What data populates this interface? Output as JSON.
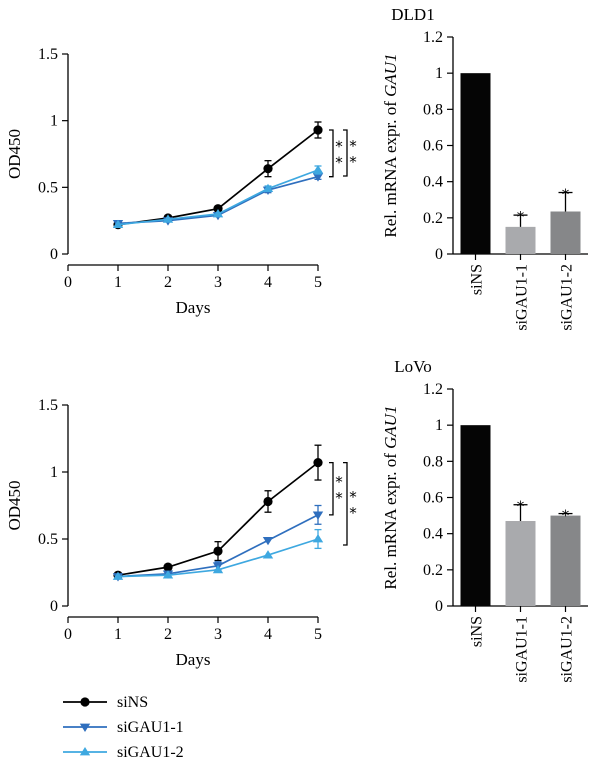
{
  "legend": [
    {
      "name": "siNS",
      "color": "#000000",
      "marker": "circle"
    },
    {
      "name": "siGAU1-1",
      "color": "#2f6fbe",
      "marker": "triangle-down"
    },
    {
      "name": "siGAU1-2",
      "color": "#3ea8e0",
      "marker": "triangle-up"
    }
  ],
  "chart_data": [
    {
      "type": "line",
      "title": "DLD1",
      "xlabel": "Days",
      "ylabel": "OD450",
      "x": [
        1,
        2,
        3,
        4,
        5
      ],
      "xticks": [
        "0",
        "1",
        "2",
        "3",
        "4",
        "5"
      ],
      "yticks": [
        "0",
        "0.5",
        "1",
        "1.5"
      ],
      "xlim": [
        0,
        5
      ],
      "ylim": [
        0,
        1.5
      ],
      "significance": [
        "*",
        "*",
        "*",
        "*"
      ],
      "series": [
        {
          "name": "siNS",
          "color": "#000000",
          "marker": "circle",
          "values": [
            0.22,
            0.27,
            0.34,
            0.64,
            0.93
          ],
          "errors": [
            0.01,
            0.01,
            0.01,
            0.06,
            0.06
          ]
        },
        {
          "name": "siGAU1-1",
          "color": "#2f6fbe",
          "marker": "triangle-down",
          "values": [
            0.23,
            0.25,
            0.29,
            0.48,
            0.58
          ],
          "errors": [
            0.01,
            0.01,
            0.01,
            0.02,
            0.02
          ]
        },
        {
          "name": "siGAU1-2",
          "color": "#3ea8e0",
          "marker": "triangle-up",
          "values": [
            0.22,
            0.26,
            0.3,
            0.49,
            0.63
          ],
          "errors": [
            0.01,
            0.01,
            0.01,
            0.02,
            0.03
          ]
        }
      ]
    },
    {
      "type": "bar",
      "ylabel_pre": "Rel. mRNA expr. of ",
      "ylabel_gene": "GAU1",
      "categories": [
        "siNS",
        "siGAU1-1",
        "siGAU1-2"
      ],
      "values": [
        1.0,
        0.15,
        0.235
      ],
      "errors": [
        0,
        0.065,
        0.105
      ],
      "colors": [
        "#050505",
        "#a9aaad",
        "#868789"
      ],
      "significance": [
        "",
        "*",
        "*"
      ],
      "yticks": [
        "0",
        "0.2",
        "0.4",
        "0.6",
        "0.8",
        "1",
        "1.2"
      ],
      "ylim": [
        0,
        1.2
      ]
    },
    {
      "type": "line",
      "title": "LoVo",
      "xlabel": "Days",
      "ylabel": "OD450",
      "x": [
        1,
        2,
        3,
        4,
        5
      ],
      "xticks": [
        "0",
        "1",
        "2",
        "3",
        "4",
        "5"
      ],
      "yticks": [
        "0",
        "0.5",
        "1",
        "1.5"
      ],
      "xlim": [
        0,
        5
      ],
      "ylim": [
        0,
        1.5
      ],
      "significance": [
        "*",
        "*",
        "*",
        "*"
      ],
      "series": [
        {
          "name": "siNS",
          "color": "#000000",
          "marker": "circle",
          "values": [
            0.23,
            0.29,
            0.41,
            0.78,
            1.07
          ],
          "errors": [
            0.01,
            0.02,
            0.07,
            0.08,
            0.13
          ]
        },
        {
          "name": "siGAU1-1",
          "color": "#2f6fbe",
          "marker": "triangle-down",
          "values": [
            0.22,
            0.24,
            0.3,
            0.49,
            0.68
          ],
          "errors": [
            0.01,
            0.01,
            0.03,
            0.01,
            0.07
          ]
        },
        {
          "name": "siGAU1-2",
          "color": "#3ea8e0",
          "marker": "triangle-up",
          "values": [
            0.22,
            0.23,
            0.27,
            0.38,
            0.5
          ],
          "errors": [
            0.01,
            0.01,
            0.01,
            0.01,
            0.07
          ]
        }
      ]
    },
    {
      "type": "bar",
      "ylabel_pre": "Rel. mRNA expr. of ",
      "ylabel_gene": "GAU1",
      "categories": [
        "siNS",
        "siGAU1-1",
        "siGAU1-2"
      ],
      "values": [
        1.0,
        0.47,
        0.5
      ],
      "errors": [
        0,
        0.09,
        0.01
      ],
      "colors": [
        "#050505",
        "#a9aaad",
        "#868789"
      ],
      "significance": [
        "",
        "*",
        "*"
      ],
      "yticks": [
        "0",
        "0.2",
        "0.4",
        "0.6",
        "0.8",
        "1",
        "1.2"
      ],
      "ylim": [
        0,
        1.2
      ]
    }
  ]
}
